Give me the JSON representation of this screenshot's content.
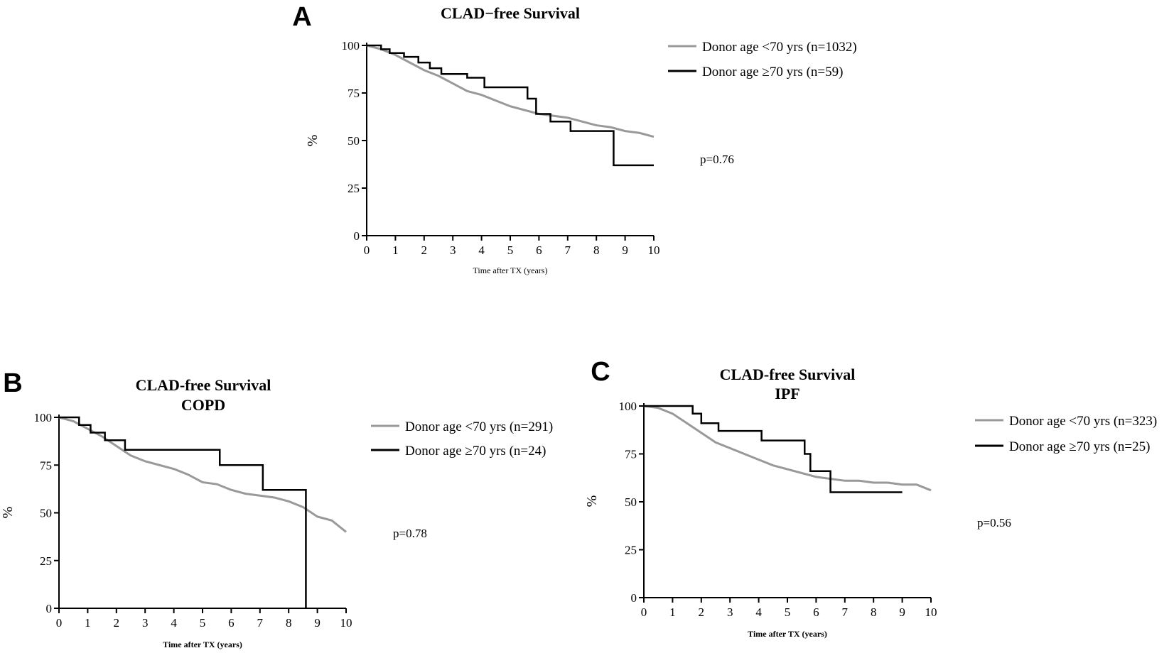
{
  "chart_data": [
    {
      "panel": "A",
      "type": "line",
      "title": [
        "CLAD−free Survival"
      ],
      "xlabel": "Time after TX (years)",
      "ylabel": "%",
      "xlim": [
        0,
        10
      ],
      "ylim": [
        0,
        100
      ],
      "xticks": [
        "0",
        "1",
        "2",
        "3",
        "4",
        "5",
        "6",
        "7",
        "8",
        "9",
        "10"
      ],
      "yticks": [
        "0",
        "25",
        "50",
        "75",
        "100"
      ],
      "pvalue": "p=0.76",
      "series": [
        {
          "name": "Donor age <70 yrs (n=1032)",
          "color": "#999999",
          "step": false,
          "x": [
            0,
            0.5,
            1,
            1.5,
            2,
            2.5,
            3,
            3.5,
            4,
            4.5,
            5,
            5.5,
            6,
            6.5,
            7,
            7.5,
            8,
            8.5,
            9,
            9.5,
            10
          ],
          "y": [
            100,
            98,
            95,
            91,
            87,
            84,
            80,
            76,
            74,
            71,
            68,
            66,
            64,
            63,
            62,
            60,
            58,
            57,
            55,
            54,
            52
          ]
        },
        {
          "name": "Donor age ≥70 yrs (n=59)",
          "color": "#000000",
          "step": true,
          "x": [
            0,
            0.5,
            0.8,
            1.3,
            1.8,
            2.2,
            2.6,
            3.5,
            4.1,
            5.6,
            5.9,
            6.4,
            7.1,
            8.6,
            10
          ],
          "y": [
            100,
            98,
            96,
            94,
            91,
            88,
            85,
            83,
            78,
            72,
            64,
            60,
            55,
            37,
            37
          ]
        }
      ]
    },
    {
      "panel": "B",
      "type": "line",
      "title": [
        "CLAD-free Survival",
        "COPD"
      ],
      "xlabel": "Time after TX (years)",
      "ylabel": "%",
      "xlim": [
        0,
        10
      ],
      "ylim": [
        0,
        100
      ],
      "xticks": [
        "0",
        "1",
        "2",
        "3",
        "4",
        "5",
        "6",
        "7",
        "8",
        "9",
        "10"
      ],
      "yticks": [
        "0",
        "25",
        "50",
        "75",
        "100"
      ],
      "pvalue": "p=0.78",
      "series": [
        {
          "name": "Donor age <70 yrs (n=291)",
          "color": "#999999",
          "step": false,
          "x": [
            0,
            0.5,
            1,
            1.5,
            2,
            2.5,
            3,
            3.5,
            4,
            4.5,
            5,
            5.5,
            6,
            6.5,
            7,
            7.5,
            8,
            8.5,
            9,
            9.5,
            10
          ],
          "y": [
            100,
            98,
            94,
            90,
            85,
            80,
            77,
            75,
            73,
            70,
            66,
            65,
            62,
            60,
            59,
            58,
            56,
            53,
            48,
            46,
            40
          ]
        },
        {
          "name": "Donor age ≥70 yrs (n=24)",
          "color": "#000000",
          "step": true,
          "x": [
            0,
            0.7,
            1.1,
            1.6,
            2.3,
            5.6,
            7.1,
            8.6,
            8.6
          ],
          "y": [
            100,
            96,
            92,
            88,
            83,
            75,
            62,
            62,
            0
          ]
        }
      ]
    },
    {
      "panel": "C",
      "type": "line",
      "title": [
        "CLAD-free Survival",
        "IPF"
      ],
      "xlabel": "Time after TX (years)",
      "ylabel": "%",
      "xlim": [
        0,
        10
      ],
      "ylim": [
        0,
        100
      ],
      "xticks": [
        "0",
        "1",
        "2",
        "3",
        "4",
        "5",
        "6",
        "7",
        "8",
        "9",
        "10"
      ],
      "yticks": [
        "0",
        "25",
        "50",
        "75",
        "100"
      ],
      "pvalue": "p=0.56",
      "series": [
        {
          "name": "Donor age <70 yrs (n=323)",
          "color": "#999999",
          "step": false,
          "x": [
            0,
            0.5,
            1,
            1.5,
            2,
            2.5,
            3,
            3.5,
            4,
            4.5,
            5,
            5.5,
            6,
            6.5,
            7,
            7.5,
            8,
            8.5,
            9,
            9.5,
            10
          ],
          "y": [
            100,
            99,
            96,
            91,
            86,
            81,
            78,
            75,
            72,
            69,
            67,
            65,
            63,
            62,
            61,
            61,
            60,
            60,
            59,
            59,
            56
          ]
        },
        {
          "name": "Donor age ≥70 yrs (n=25)",
          "color": "#000000",
          "step": true,
          "x": [
            0,
            1.7,
            2,
            2.6,
            4.1,
            5.6,
            5.8,
            6.5,
            9
          ],
          "y": [
            100,
            96,
            91,
            87,
            82,
            75,
            66,
            55,
            55
          ]
        }
      ]
    }
  ]
}
